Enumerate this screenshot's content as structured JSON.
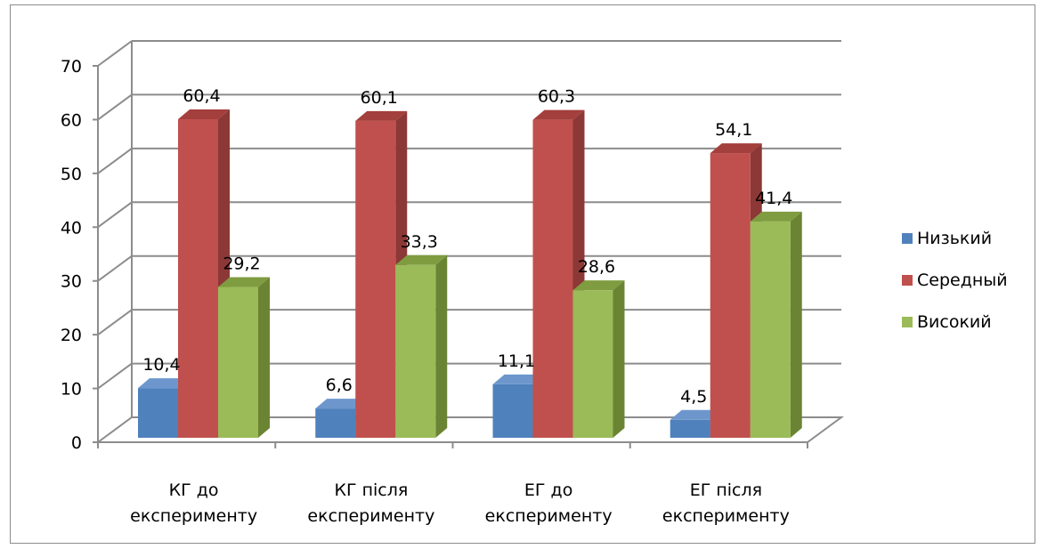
{
  "chart_data": {
    "type": "bar",
    "style": "3d-clustered-column",
    "categories": [
      [
        "КГ до",
        "експерименту"
      ],
      [
        "КГ після",
        "експерименту"
      ],
      [
        "ЕГ до",
        "експерименту"
      ],
      [
        "ЕГ після",
        "експерименту"
      ]
    ],
    "series": [
      {
        "name": "Низький",
        "values": [
          10.4,
          6.6,
          11.1,
          4.5
        ],
        "color": "#4f81bd",
        "dark": "#385d8a",
        "top": "#6d97cc"
      },
      {
        "name": "Середный",
        "values": [
          60.4,
          60.1,
          60.3,
          54.1
        ],
        "color": "#c0504d",
        "dark": "#8c3836",
        "top": "#a33f3c"
      },
      {
        "name": "Високий",
        "values": [
          29.2,
          33.3,
          28.6,
          41.4
        ],
        "color": "#9bbb59",
        "dark": "#6b8433",
        "top": "#7f9c40"
      }
    ],
    "data_labels": [
      [
        "10,4",
        "6,6",
        "11,1",
        "4,5"
      ],
      [
        "60,4",
        "60,1",
        "60,3",
        "54,1"
      ],
      [
        "29,2",
        "33,3",
        "28,6",
        "41,4"
      ]
    ],
    "y_ticks": [
      "0",
      "10",
      "20",
      "30",
      "40",
      "50",
      "60",
      "70"
    ],
    "ylim": [
      0,
      70
    ],
    "grid": true,
    "legend_position": "right",
    "title": "",
    "xlabel": "",
    "ylabel": ""
  }
}
